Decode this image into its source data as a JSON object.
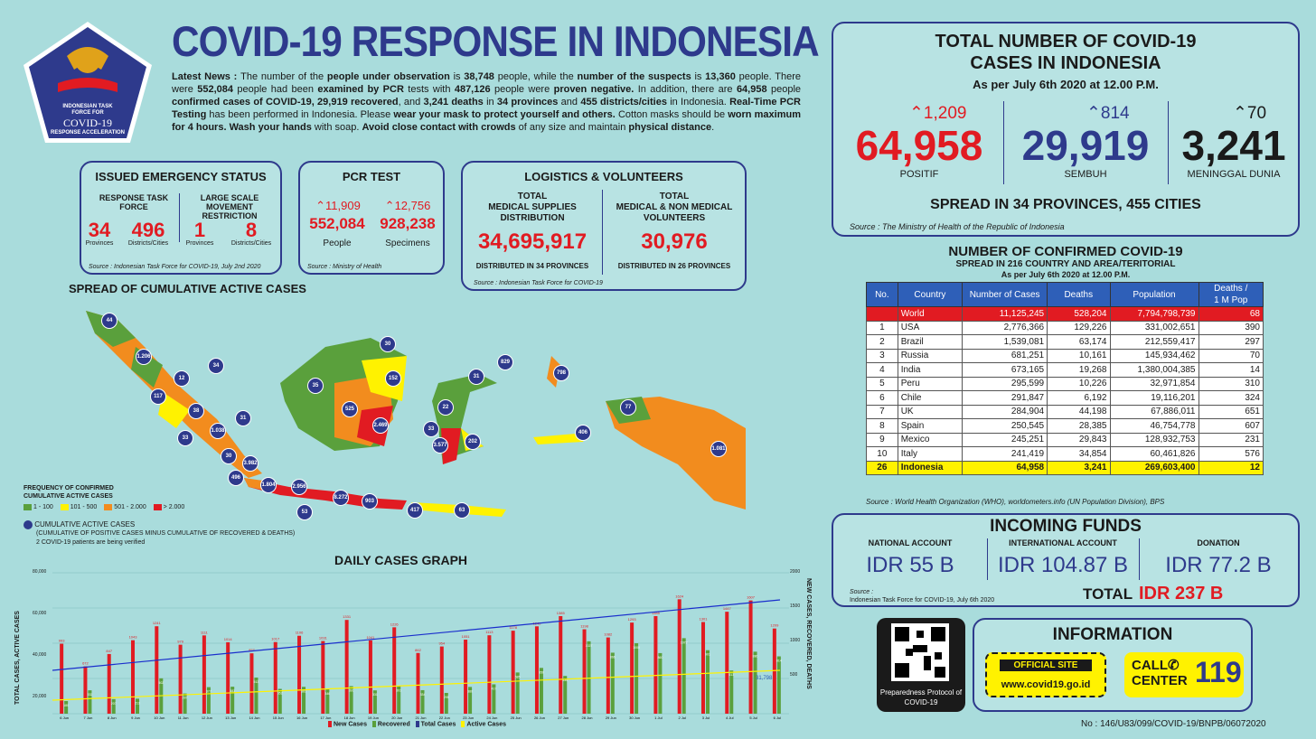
{
  "logo": {
    "line1": "INDONESIAN TASK",
    "line2": "FORCE FOR",
    "line3": "COVID-19",
    "line4": "RESPONSE ACCELERATION"
  },
  "title": "COVID-19 RESPONSE IN INDONESIA",
  "news": {
    "p1": "Latest News : ",
    "p2": "The number of the ",
    "p3": "people under observation",
    "p4": " is ",
    "p5": "38,748",
    "p6": " people, while the ",
    "p7": "number of the suspects",
    "p8": " is ",
    "p9": "13,360",
    "p10": " people. There were ",
    "p11": "552,084",
    "p12": " people had been ",
    "p13": "examined by PCR",
    "p14": " tests with ",
    "p15": "487,126",
    "p16": " people were ",
    "p17": "proven negative.",
    "p18": " In addition, there are ",
    "p19": "64,958",
    "p20": " people ",
    "p21": "confirmed cases of COVID-19, 29,919 recovered",
    "p22": ", and ",
    "p23": "3,241 deaths",
    "p24": " in ",
    "p25": "34 provinces",
    "p26": " and ",
    "p27": "455 districts/cities",
    "p28": " in Indonesia. ",
    "p29": "Real-Time PCR Testing",
    "p30": " has been performed in Indonesia. Please ",
    "p31": "wear your mask to protect yourself and others.",
    "p32": " Cotton masks should be ",
    "p33": "worn maximum for 4 hours.",
    "p34": " ",
    "p35": "Wash your hands",
    "p36": " with soap. ",
    "p37": "Avoid close contact with crowds",
    "p38": " of any size and maintain ",
    "p39": "physical distance",
    "p40": "."
  },
  "emergency": {
    "title": "ISSUED EMERGENCY STATUS",
    "h1": "RESPONSE TASK FORCE",
    "h2": "LARGE SCALE MOVEMENT RESTRICTION",
    "v1": "34",
    "l1": "Provinces",
    "v2": "496",
    "l2": "Districts/Cities",
    "v3": "1",
    "l3": "Provinces",
    "v4": "8",
    "l4": "Districts/Cities",
    "source": "Source : Indonesian Task Force for COVID-19, July 2nd 2020"
  },
  "pcr": {
    "title": "PCR TEST",
    "inc1": "11,909",
    "inc2": "12,756",
    "v1": "552,084",
    "l1": "People",
    "v2": "928,238",
    "l2": "Specimens",
    "source": "Source : Ministry of Health"
  },
  "logistics": {
    "title": "LOGISTICS & VOLUNTEERS",
    "h1a": "TOTAL",
    "h1b": "MEDICAL SUPPLIES",
    "h1c": "DISTRIBUTION",
    "h2a": "TOTAL",
    "h2b": "MEDICAL & NON MEDICAL",
    "h2c": "VOLUNTEERS",
    "v1": "34,695,917",
    "v2": "30,976",
    "f1": "DISTRIBUTED IN 34 PROVINCES",
    "f2": "DISTRIBUTED IN 26 PROVINCES",
    "source": "Source : Indonesian Task Force for COVID-19"
  },
  "map": {
    "title": "SPREAD OF CUMULATIVE ACTIVE CASES",
    "legend_title1": "FREQUENCY OF CONFIRMED",
    "legend_title2": "CUMULATIVE ACTIVE CASES",
    "legend": [
      {
        "label": "1 - 100",
        "color": "#5aa03c"
      },
      {
        "label": "101 - 500",
        "color": "#fff200"
      },
      {
        "label": "501 - 2.000",
        "color": "#f28c1e"
      },
      {
        "label": "> 2.000",
        "color": "#e11b22"
      }
    ],
    "circle_label": "CUMULATIVE ACTIVE CASES",
    "circle_note": "(CUMULATIVE OF POSITIVE CASES MINUS CUMULATIVE OF RECOVERED & DEATHS)",
    "verify_note": "2 COVID-19 patients are being verified",
    "markers": [
      "44",
      "1.206",
      "12",
      "34",
      "117",
      "38",
      "31",
      "33",
      "1.038",
      "30",
      "3.982",
      "496",
      "1.804",
      "2.956",
      "53",
      "8.272",
      "903",
      "35",
      "30",
      "152",
      "525",
      "2.469",
      "829",
      "31",
      "798",
      "22",
      "33",
      "3.577",
      "202",
      "406",
      "77",
      "1.081",
      "417",
      "63"
    ]
  },
  "daily": {
    "title": "DAILY CASES GRAPH",
    "yleft": "TOTAL CASES, ACTIVE CASES",
    "yright": "NEW CASES, RECOVERED, DEATHS",
    "yticks_left": [
      "80,000",
      "60,000",
      "40,000",
      "20,000"
    ],
    "yticks_right": [
      "2000",
      "1500",
      "1000",
      "500"
    ],
    "legend": [
      "New Cases",
      "Recovered",
      "Total Cases",
      "Active Cases"
    ]
  },
  "chart_data": {
    "type": "bar",
    "categories": [
      "6 Jun",
      "7 Jun",
      "8 Jun",
      "9 Jun",
      "10 Jun",
      "11 Jun",
      "12 Jun",
      "13 Jun",
      "14 Jun",
      "15 Jun",
      "16 Jun",
      "17 Jun",
      "18 Jun",
      "19 Jun",
      "20 Jun",
      "21 Jun",
      "22 Jun",
      "23 Jun",
      "24 Jun",
      "25 Jun",
      "26 Jun",
      "27 Jun",
      "28 Jun",
      "29 Jun",
      "30 Jun",
      "1 Jul",
      "2 Jul",
      "3 Jul",
      "4 Jul",
      "5 Jul",
      "6 Jul"
    ],
    "series": [
      {
        "name": "New Cases",
        "values": [
          993,
          672,
          847,
          1043,
          1241,
          979,
          1111,
          1014,
          857,
          1017,
          1106,
          1031,
          1331,
          1041,
          1226,
          862,
          954,
          1051,
          1113,
          1178,
          1240,
          1385,
          1198,
          1082,
          1293,
          1385,
          1624,
          1301,
          1447,
          1607,
          1209
        ]
      },
      {
        "name": "Recovered",
        "values": [
          180,
          332,
          207,
          213,
          502,
          287,
          377,
          383,
          513,
          352,
          381,
          346,
          391,
          331,
          391,
          334,
          295,
          380,
          417,
          585,
          650,
          536,
          1027,
          866,
          1000,
          860,
          1072,
          901,
          613,
          880,
          814
        ]
      }
    ],
    "ylabel": "NEW CASES, RECOVERED, DEATHS",
    "ylim": [
      0,
      2000
    ],
    "annotation": "31,798"
  },
  "total": {
    "title1": "TOTAL NUMBER OF COVID-19",
    "title2": "CASES IN INDONESIA",
    "date": "As per July 6th 2020 at 12.00 P.M.",
    "inc1": "1,209",
    "v1": "64,958",
    "l1": "POSITIF",
    "inc2": "814",
    "v2": "29,919",
    "l2": "SEMBUH",
    "inc3": "70",
    "v3": "3,241",
    "l3": "MENINGGAL DUNIA",
    "spread": "SPREAD IN 34 PROVINCES, 455 CITIES",
    "source": "Source : The Ministry of Health of the Republic of Indonesia"
  },
  "world": {
    "title": "NUMBER OF CONFIRMED COVID-19",
    "sub": "SPREAD IN 216 COUNTRY AND AREA/TERITORIAL",
    "date": "As per July 6th 2020 at 12.00 P.M.",
    "headers": [
      "No.",
      "Country",
      "Number of Cases",
      "Deaths",
      "Population",
      "Deaths /",
      "1 M Pop"
    ],
    "rows": [
      [
        "",
        "World",
        "11,125,245",
        "528,204",
        "7,794,798,739",
        "68"
      ],
      [
        "1",
        "USA",
        "2,776,366",
        "129,226",
        "331,002,651",
        "390"
      ],
      [
        "2",
        "Brazil",
        "1,539,081",
        "63,174",
        "212,559,417",
        "297"
      ],
      [
        "3",
        "Russia",
        "681,251",
        "10,161",
        "145,934,462",
        "70"
      ],
      [
        "4",
        "India",
        "673,165",
        "19,268",
        "1,380,004,385",
        "14"
      ],
      [
        "5",
        "Peru",
        "295,599",
        "10,226",
        "32,971,854",
        "310"
      ],
      [
        "6",
        "Chile",
        "291,847",
        "6,192",
        "19,116,201",
        "324"
      ],
      [
        "7",
        "UK",
        "284,904",
        "44,198",
        "67,886,011",
        "651"
      ],
      [
        "8",
        "Spain",
        "250,545",
        "28,385",
        "46,754,778",
        "607"
      ],
      [
        "9",
        "Mexico",
        "245,251",
        "29,843",
        "128,932,753",
        "231"
      ],
      [
        "10",
        "Italy",
        "241,419",
        "34,854",
        "60,461,826",
        "576"
      ],
      [
        "26",
        "Indonesia",
        "64,958",
        "3,241",
        "269,603,400",
        "12"
      ]
    ],
    "source": "Source : World Health Organization (WHO), worldometers.info (UN Population Division), BPS"
  },
  "funds": {
    "title": "INCOMING FUNDS",
    "h1": "NATIONAL ACCOUNT",
    "v1": "IDR 55 B",
    "h2": "INTERNATIONAL ACCOUNT",
    "v2": "IDR 104.87 B",
    "h3": "DONATION",
    "v3": "IDR 77.2 B",
    "source1": "Source :",
    "source2": "Indonesian Task Force for COVID-19, July 6th 2020",
    "total_label": "TOTAL",
    "total_value": "IDR 237 B"
  },
  "qr": {
    "l1": "Preparedness Protocol of",
    "l2": "COVID-19"
  },
  "info": {
    "title": "INFORMATION",
    "site_label": "OFFICIAL SITE",
    "site_url": "www.covid19.go.id",
    "call1": "CALL",
    "call2": "CENTER",
    "call_num": "119"
  },
  "footer": "No : 146/U83/099/COVID-19/BNPB/06072020"
}
